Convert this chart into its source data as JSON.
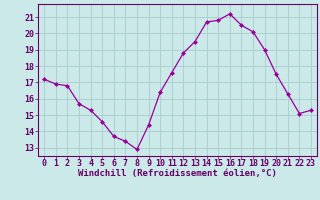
{
  "x": [
    0,
    1,
    2,
    3,
    4,
    5,
    6,
    7,
    8,
    9,
    10,
    11,
    12,
    13,
    14,
    15,
    16,
    17,
    18,
    19,
    20,
    21,
    22,
    23
  ],
  "y": [
    17.2,
    16.9,
    16.8,
    15.7,
    15.3,
    14.6,
    13.7,
    13.4,
    12.9,
    14.4,
    16.4,
    17.6,
    18.8,
    19.5,
    20.7,
    20.8,
    21.2,
    20.5,
    20.1,
    19.0,
    17.5,
    16.3,
    15.1,
    15.3
  ],
  "line_color": "#990099",
  "marker": "D",
  "marker_size": 2,
  "bg_color": "#cce9e9",
  "grid_color": "#aacccc",
  "xlabel": "Windchill (Refroidissement éolien,°C)",
  "xlabel_color": "#660066",
  "tick_color": "#660066",
  "ylim_min": 12.5,
  "ylim_max": 21.8,
  "yticks": [
    13,
    14,
    15,
    16,
    17,
    18,
    19,
    20,
    21
  ],
  "xticks": [
    0,
    1,
    2,
    3,
    4,
    5,
    6,
    7,
    8,
    9,
    10,
    11,
    12,
    13,
    14,
    15,
    16,
    17,
    18,
    19,
    20,
    21,
    22,
    23
  ],
  "tick_fontsize": 6,
  "xlabel_fontsize": 6.5,
  "spine_color": "#660066"
}
